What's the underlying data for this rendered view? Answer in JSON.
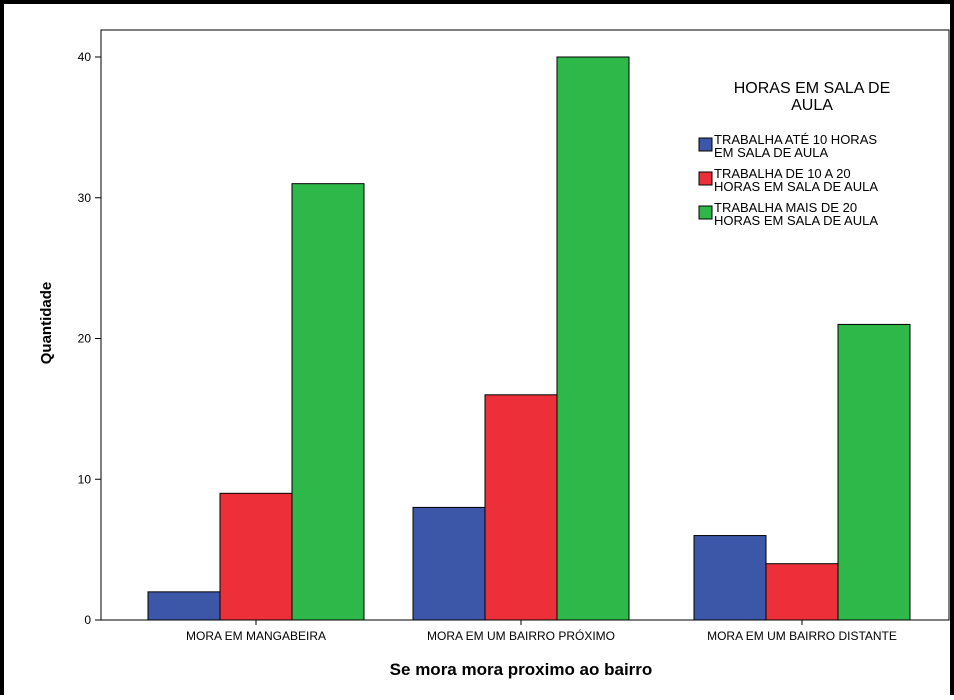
{
  "chart_data": {
    "type": "bar",
    "title": "",
    "xlabel": "Se mora mora proximo ao bairro",
    "ylabel": "Quantidade",
    "categories": [
      "MORA EM MANGABEIRA",
      "MORA EM UM BAIRRO PRÓXIMO",
      "MORA EM UM BAIRRO DISTANTE"
    ],
    "series": [
      {
        "name": "TRABALHA ATÉ 10 HORAS EM SALA DE AULA",
        "legend_lines": [
          "TRABALHA ATÉ 10 HORAS",
          "EM SALA DE AULA"
        ],
        "color": "#3c56a8",
        "values": [
          2,
          8,
          6
        ]
      },
      {
        "name": "TRABALHA DE 10 A 20 HORAS EM SALA DE AULA",
        "legend_lines": [
          "TRABALHA DE 10 A 20",
          "HORAS EM SALA DE AULA"
        ],
        "color": "#ed2f3a",
        "values": [
          9,
          16,
          4
        ]
      },
      {
        "name": "TRABALHA MAIS DE 20 HORAS EM SALA DE AULA",
        "legend_lines": [
          "TRABALHA MAIS DE 20",
          "HORAS EM SALA DE AULA"
        ],
        "color": "#2fb84a",
        "values": [
          31,
          40,
          21
        ]
      }
    ],
    "ylim": [
      0,
      40
    ],
    "yticks": [
      0,
      10,
      20,
      30,
      40
    ],
    "grid": false,
    "legend": {
      "title_lines": [
        "HORAS EM SALA DE",
        "AULA"
      ],
      "placement": "top-right"
    }
  }
}
